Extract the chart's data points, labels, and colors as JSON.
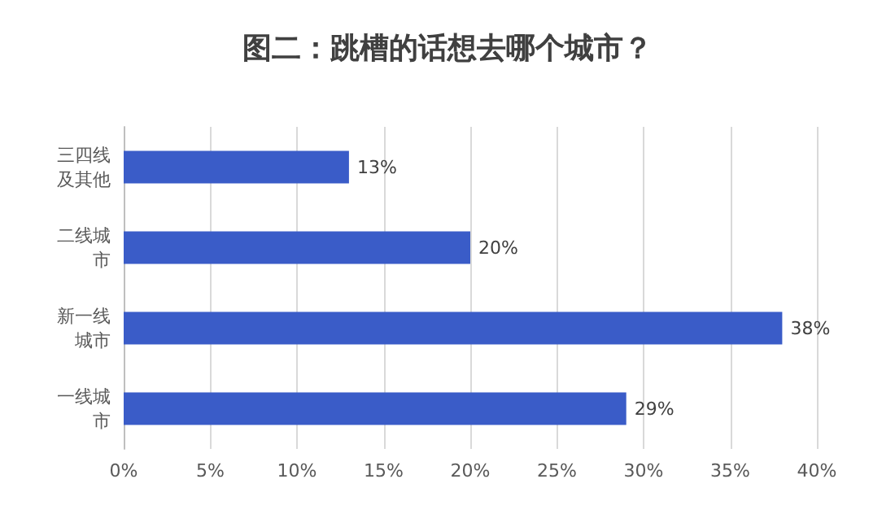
{
  "chart_data": {
    "type": "bar",
    "orientation": "horizontal",
    "title": "图二：跳槽的话想去哪个城市？",
    "categories": [
      "三四线及其他",
      "二线城市",
      "新一线城市",
      "一线城市"
    ],
    "values": [
      13,
      20,
      38,
      29
    ],
    "value_labels": [
      "13%",
      "20%",
      "38%",
      "29%"
    ],
    "color": "#3a5cc8",
    "xlim": [
      0,
      40
    ],
    "xticks": [
      {
        "value": 0,
        "label": "0%"
      },
      {
        "value": 5,
        "label": "5%"
      },
      {
        "value": 10,
        "label": "10%"
      },
      {
        "value": 15,
        "label": "15%"
      },
      {
        "value": 20,
        "label": "20%"
      },
      {
        "value": 25,
        "label": "25%"
      },
      {
        "value": 30,
        "label": "30%"
      },
      {
        "value": 35,
        "label": "35%"
      },
      {
        "value": 40,
        "label": "40%"
      }
    ],
    "grid": "x"
  }
}
